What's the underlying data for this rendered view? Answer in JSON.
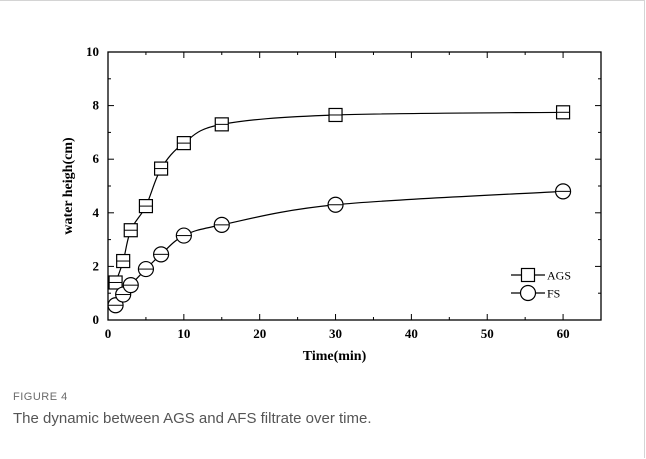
{
  "figure": {
    "label": "FIGURE 4",
    "caption": "The dynamic between AGS and AFS filtrate over time."
  },
  "chart_data": {
    "type": "line",
    "title": "",
    "xlabel": "Time(min)",
    "ylabel": "water heigh(cm)",
    "xlim": [
      0,
      65
    ],
    "ylim": [
      0,
      10
    ],
    "xticks": [
      0,
      10,
      20,
      30,
      40,
      50,
      60
    ],
    "yticks": [
      0,
      2,
      4,
      6,
      8,
      10
    ],
    "grid": false,
    "legend_position": "bottom-right",
    "series": [
      {
        "name": "AGS",
        "marker": "square",
        "color": "#000000",
        "x": [
          1,
          2,
          3,
          5,
          7,
          10,
          15,
          30,
          60
        ],
        "y": [
          1.4,
          2.2,
          3.35,
          4.25,
          5.65,
          6.6,
          7.3,
          7.65,
          7.75
        ]
      },
      {
        "name": "FS",
        "marker": "circle",
        "color": "#000000",
        "x": [
          1,
          2,
          3,
          5,
          7,
          10,
          15,
          30,
          60
        ],
        "y": [
          0.55,
          0.95,
          1.3,
          1.9,
          2.45,
          3.15,
          3.55,
          4.3,
          4.8
        ]
      }
    ]
  }
}
